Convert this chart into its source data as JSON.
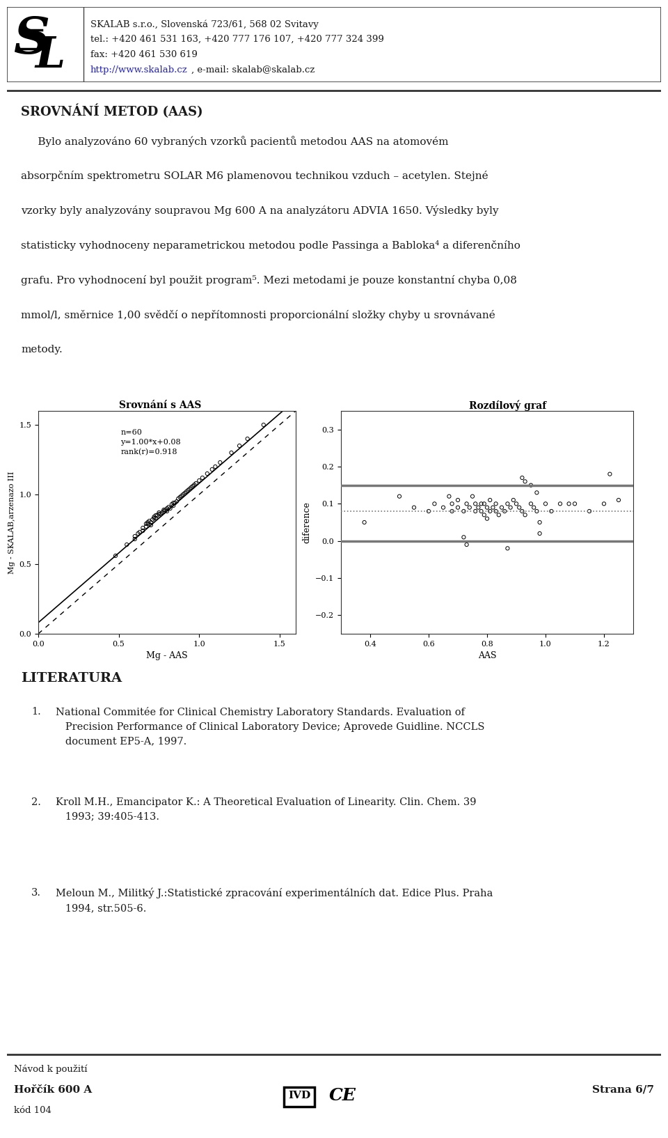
{
  "page_bg": "#ffffff",
  "header_company": "SKALAB s.r.o., Slovenská 723/61, 568 02 Svitavy",
  "header_tel": "tel.: +420 461 531 163, +420 777 176 107, +420 777 324 399",
  "header_fax": "fax: +420 461 530 619",
  "header_web": "http://www.skalab.cz",
  "header_email": ", e-mail: skalab@skalab.cz",
  "title": "SROVNÁNÍ METOD (AAS)",
  "plot1_title": "Srovnání s AAS",
  "plot2_title": "Rozdílový graf",
  "plot1_xlabel": "Mg - AAS",
  "plot1_ylabel": "Mg - SKALAB,arzenazo III",
  "plot2_xlabel": "AAS",
  "plot2_ylabel": "diference",
  "plot1_annotation": "n=60\ny=1.00*x+0.08\nrank(r)=0.918",
  "plot1_xlim": [
    0.0,
    1.6
  ],
  "plot1_ylim": [
    0.0,
    1.6
  ],
  "plot1_xticks": [
    0.0,
    0.5,
    1.0,
    1.5
  ],
  "plot1_yticks": [
    0.0,
    0.5,
    1.0,
    1.5
  ],
  "plot2_xlim": [
    0.3,
    1.3
  ],
  "plot2_ylim": [
    -0.25,
    0.35
  ],
  "plot2_xticks": [
    0.4,
    0.6,
    0.8,
    1.0,
    1.2
  ],
  "plot2_yticks": [
    -0.2,
    -0.1,
    0.0,
    0.1,
    0.2,
    0.3
  ],
  "scatter1_x": [
    0.48,
    0.55,
    0.6,
    0.6,
    0.62,
    0.63,
    0.65,
    0.65,
    0.67,
    0.67,
    0.68,
    0.68,
    0.69,
    0.7,
    0.7,
    0.71,
    0.72,
    0.72,
    0.73,
    0.73,
    0.74,
    0.75,
    0.75,
    0.76,
    0.77,
    0.78,
    0.78,
    0.79,
    0.8,
    0.8,
    0.81,
    0.82,
    0.83,
    0.84,
    0.84,
    0.85,
    0.86,
    0.87,
    0.88,
    0.89,
    0.9,
    0.91,
    0.92,
    0.93,
    0.94,
    0.95,
    0.96,
    0.97,
    0.98,
    1.0,
    1.02,
    1.05,
    1.08,
    1.1,
    1.13,
    1.2,
    1.25,
    1.3,
    1.4,
    1.55
  ],
  "scatter1_y": [
    0.56,
    0.64,
    0.68,
    0.7,
    0.72,
    0.73,
    0.74,
    0.76,
    0.77,
    0.79,
    0.79,
    0.8,
    0.81,
    0.78,
    0.8,
    0.82,
    0.83,
    0.84,
    0.83,
    0.85,
    0.85,
    0.86,
    0.87,
    0.86,
    0.87,
    0.88,
    0.89,
    0.89,
    0.88,
    0.9,
    0.91,
    0.9,
    0.93,
    0.92,
    0.94,
    0.94,
    0.95,
    0.97,
    0.98,
    0.99,
    1.0,
    1.01,
    1.02,
    1.03,
    1.04,
    1.05,
    1.06,
    1.07,
    1.08,
    1.1,
    1.12,
    1.15,
    1.18,
    1.2,
    1.23,
    1.3,
    1.35,
    1.4,
    1.5,
    1.65
  ],
  "scatter2_x": [
    0.38,
    0.5,
    0.55,
    0.6,
    0.62,
    0.65,
    0.67,
    0.68,
    0.68,
    0.7,
    0.7,
    0.72,
    0.73,
    0.74,
    0.75,
    0.76,
    0.76,
    0.77,
    0.78,
    0.78,
    0.79,
    0.79,
    0.8,
    0.8,
    0.81,
    0.81,
    0.82,
    0.83,
    0.83,
    0.84,
    0.85,
    0.86,
    0.87,
    0.88,
    0.89,
    0.9,
    0.91,
    0.92,
    0.93,
    0.95,
    0.96,
    0.97,
    0.98,
    1.0,
    1.02,
    1.05,
    1.08,
    1.1,
    1.15,
    1.2,
    0.92,
    0.93,
    0.95,
    0.97,
    0.98,
    0.87,
    1.22,
    1.25,
    0.72,
    0.73
  ],
  "scatter2_y": [
    0.05,
    0.12,
    0.09,
    0.08,
    0.1,
    0.09,
    0.12,
    0.1,
    0.08,
    0.09,
    0.11,
    0.08,
    0.1,
    0.09,
    0.12,
    0.1,
    0.08,
    0.09,
    0.1,
    0.08,
    0.07,
    0.1,
    0.09,
    0.06,
    0.08,
    0.11,
    0.09,
    0.1,
    0.08,
    0.07,
    0.09,
    0.08,
    0.1,
    0.09,
    0.11,
    0.1,
    0.09,
    0.08,
    0.07,
    0.1,
    0.09,
    0.08,
    0.05,
    0.1,
    0.08,
    0.1,
    0.1,
    0.1,
    0.08,
    0.1,
    0.17,
    0.16,
    0.15,
    0.13,
    0.02,
    -0.02,
    0.18,
    0.11,
    0.01,
    -0.01
  ],
  "regression_intercept": 0.08,
  "regression_slope": 1.0,
  "hline_upper": 0.15,
  "hline_lower": 0.0,
  "hline_dotted": 0.08,
  "literatura_title": "LITERATURA",
  "footer_left1": "Návod k použití",
  "footer_left2": "Hořčík 600 A",
  "footer_left3": "kód 104",
  "footer_right": "Strana 6/7"
}
